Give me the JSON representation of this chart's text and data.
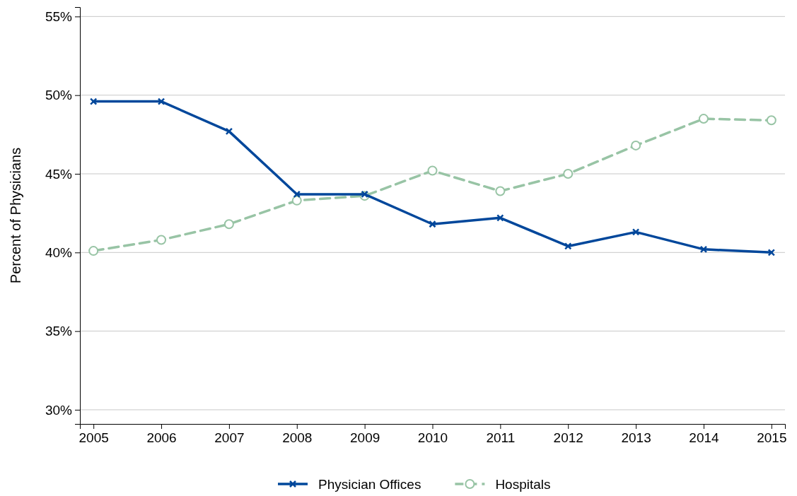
{
  "chart_data": {
    "type": "line",
    "ylabel": "Percent of Physicians",
    "x": [
      2005,
      2006,
      2007,
      2008,
      2009,
      2010,
      2011,
      2012,
      2013,
      2014,
      2015
    ],
    "xlim": [
      2004.8,
      2015.2
    ],
    "xticks": [
      2005,
      2006,
      2007,
      2008,
      2009,
      2010,
      2011,
      2012,
      2013,
      2014,
      2015
    ],
    "ylim": [
      29.1,
      55.6
    ],
    "yticks": [
      {
        "value": 30,
        "label": "30%"
      },
      {
        "value": 35,
        "label": "35%"
      },
      {
        "value": 40,
        "label": "40%"
      },
      {
        "value": 45,
        "label": "45%"
      },
      {
        "value": 50,
        "label": "50%"
      },
      {
        "value": 55,
        "label": "55%"
      }
    ],
    "grid": "y",
    "legend": "bottom",
    "series": [
      {
        "name": "Physician Offices",
        "color": "#00479b",
        "marker": "cross",
        "line_style": "solid",
        "values": [
          49.6,
          49.6,
          47.7,
          43.7,
          43.7,
          41.8,
          42.2,
          40.4,
          41.3,
          40.2,
          40.0
        ]
      },
      {
        "name": "Hospitals",
        "color": "#98c4a5",
        "marker": "circle",
        "line_style": "dashed",
        "values": [
          40.1,
          40.8,
          41.8,
          43.3,
          43.6,
          45.2,
          43.9,
          45.0,
          46.8,
          48.5,
          48.4
        ]
      }
    ]
  }
}
